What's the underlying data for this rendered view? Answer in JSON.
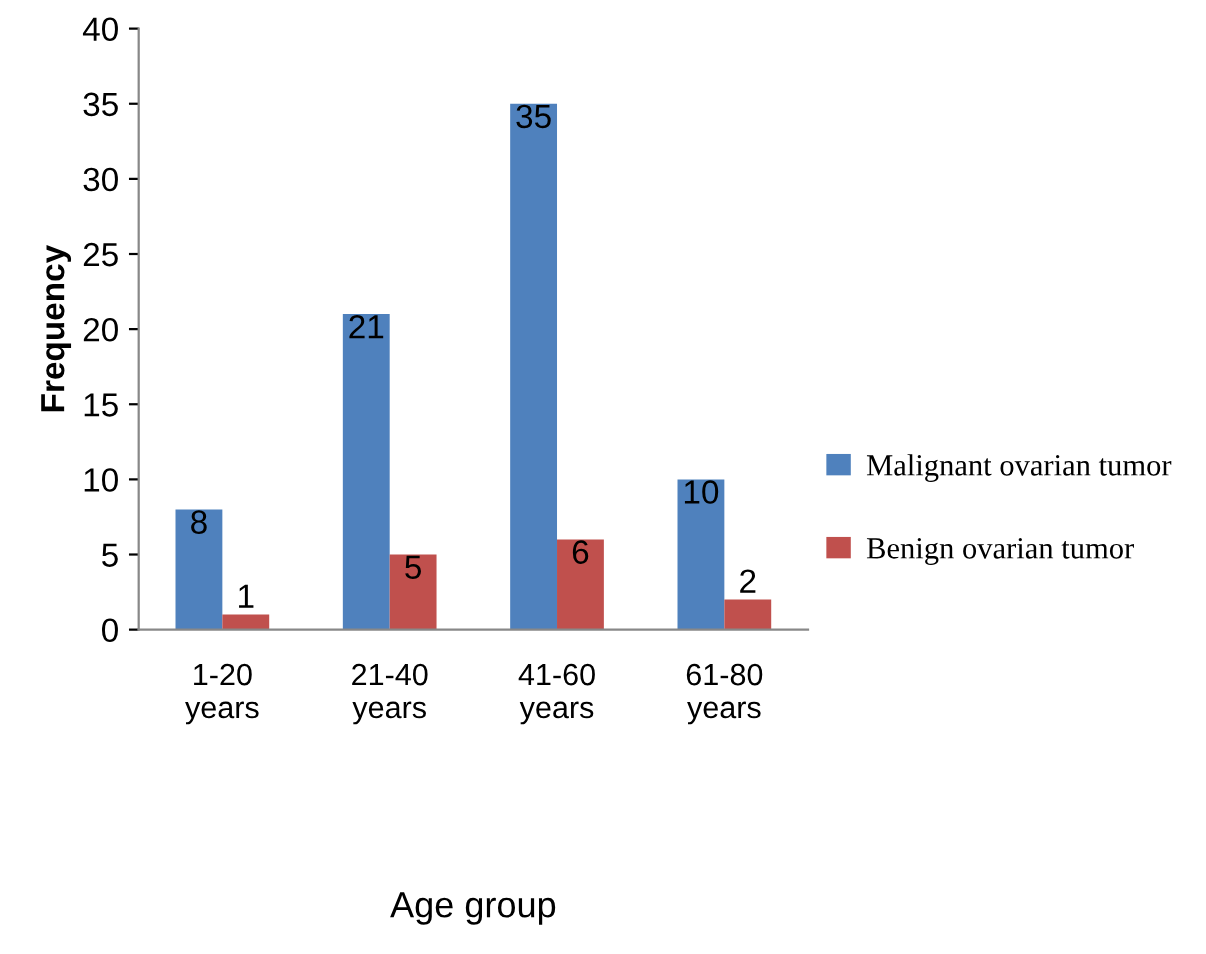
{
  "chart_data": {
    "type": "bar",
    "xlabel": "Age group",
    "ylabel": "Frequency",
    "categories": [
      "1-20\nyears",
      "21-40\nyears",
      "41-60\nyears",
      "61-80\nyears"
    ],
    "series": [
      {
        "name": "Malignant ovarian tumor",
        "color": "#4f81bd",
        "values": [
          8,
          21,
          35,
          10
        ]
      },
      {
        "name": "Benign ovarian tumor",
        "color": "#c0504d",
        "values": [
          1,
          5,
          6,
          2
        ]
      }
    ],
    "ylim": [
      0,
      40
    ],
    "yticks": [
      0,
      5,
      10,
      15,
      20,
      25,
      30,
      35,
      40
    ],
    "data_labels": true,
    "legend": "right",
    "grid": false
  }
}
